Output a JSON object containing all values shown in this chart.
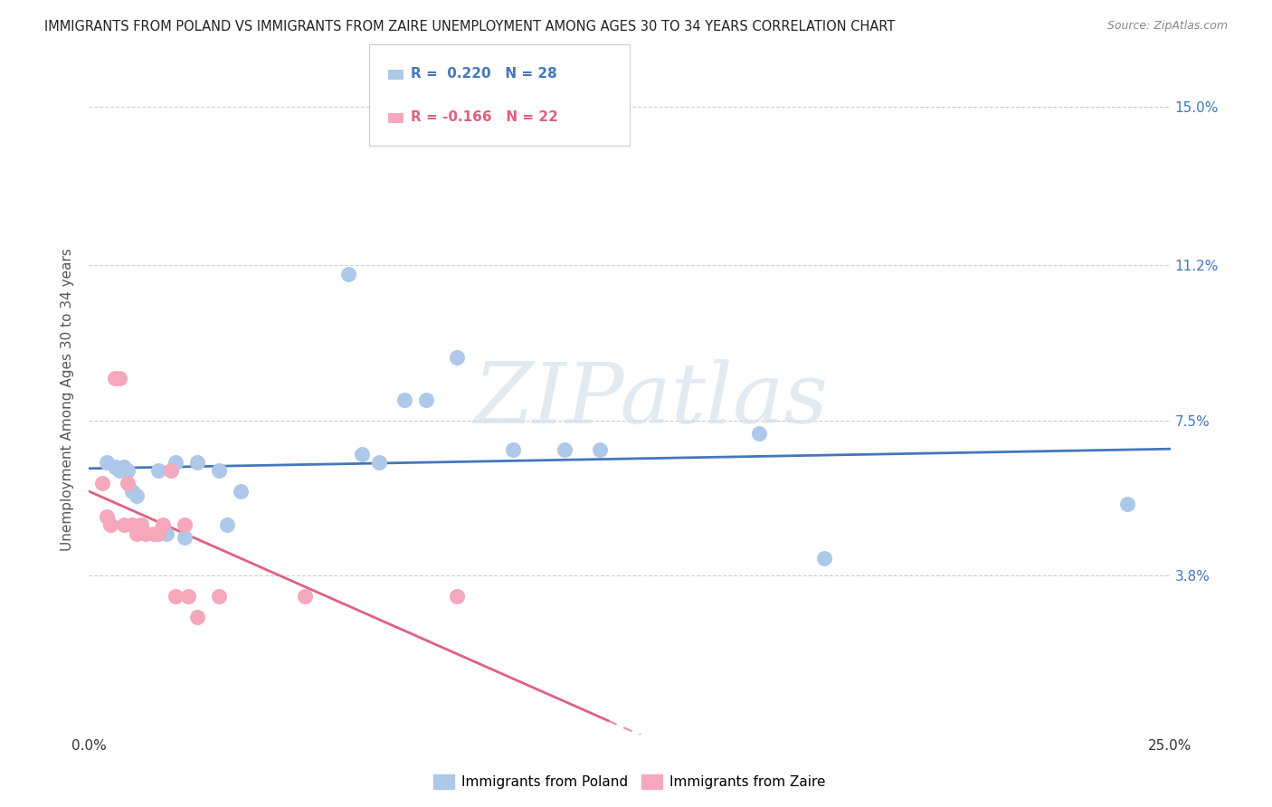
{
  "title": "IMMIGRANTS FROM POLAND VS IMMIGRANTS FROM ZAIRE UNEMPLOYMENT AMONG AGES 30 TO 34 YEARS CORRELATION CHART",
  "source": "Source: ZipAtlas.com",
  "ylabel": "Unemployment Among Ages 30 to 34 years",
  "xlim": [
    0.0,
    0.25
  ],
  "ylim": [
    0.0,
    0.16
  ],
  "xticks": [
    0.0,
    0.05,
    0.1,
    0.15,
    0.2,
    0.25
  ],
  "xticklabels": [
    "0.0%",
    "",
    "",
    "",
    "",
    "25.0%"
  ],
  "ytick_positions": [
    0.038,
    0.075,
    0.112,
    0.15
  ],
  "ytick_labels": [
    "3.8%",
    "7.5%",
    "11.2%",
    "15.0%"
  ],
  "poland_color": "#adc8e8",
  "zaire_color": "#f5a8bc",
  "poland_line_color": "#4477bb",
  "zaire_line_color": "#e06080",
  "R_poland": 0.22,
  "N_poland": 28,
  "R_zaire": -0.166,
  "N_zaire": 22,
  "watermark": "ZIPatlas",
  "poland_x": [
    0.004,
    0.006,
    0.007,
    0.008,
    0.009,
    0.01,
    0.011,
    0.012,
    0.016,
    0.018,
    0.02,
    0.022,
    0.025,
    0.03,
    0.032,
    0.035,
    0.06,
    0.063,
    0.067,
    0.073,
    0.078,
    0.085,
    0.098,
    0.11,
    0.118,
    0.155,
    0.17,
    0.24
  ],
  "poland_y": [
    0.065,
    0.064,
    0.063,
    0.064,
    0.063,
    0.058,
    0.057,
    0.05,
    0.063,
    0.048,
    0.065,
    0.047,
    0.065,
    0.063,
    0.05,
    0.058,
    0.11,
    0.067,
    0.065,
    0.08,
    0.08,
    0.09,
    0.068,
    0.068,
    0.068,
    0.072,
    0.042,
    0.055
  ],
  "zaire_x": [
    0.003,
    0.004,
    0.005,
    0.006,
    0.007,
    0.008,
    0.009,
    0.01,
    0.011,
    0.012,
    0.013,
    0.015,
    0.016,
    0.017,
    0.019,
    0.02,
    0.022,
    0.023,
    0.025,
    0.03,
    0.05,
    0.085
  ],
  "zaire_y": [
    0.06,
    0.052,
    0.05,
    0.085,
    0.085,
    0.05,
    0.06,
    0.05,
    0.048,
    0.05,
    0.048,
    0.048,
    0.048,
    0.05,
    0.063,
    0.033,
    0.05,
    0.033,
    0.028,
    0.033,
    0.033,
    0.033
  ]
}
